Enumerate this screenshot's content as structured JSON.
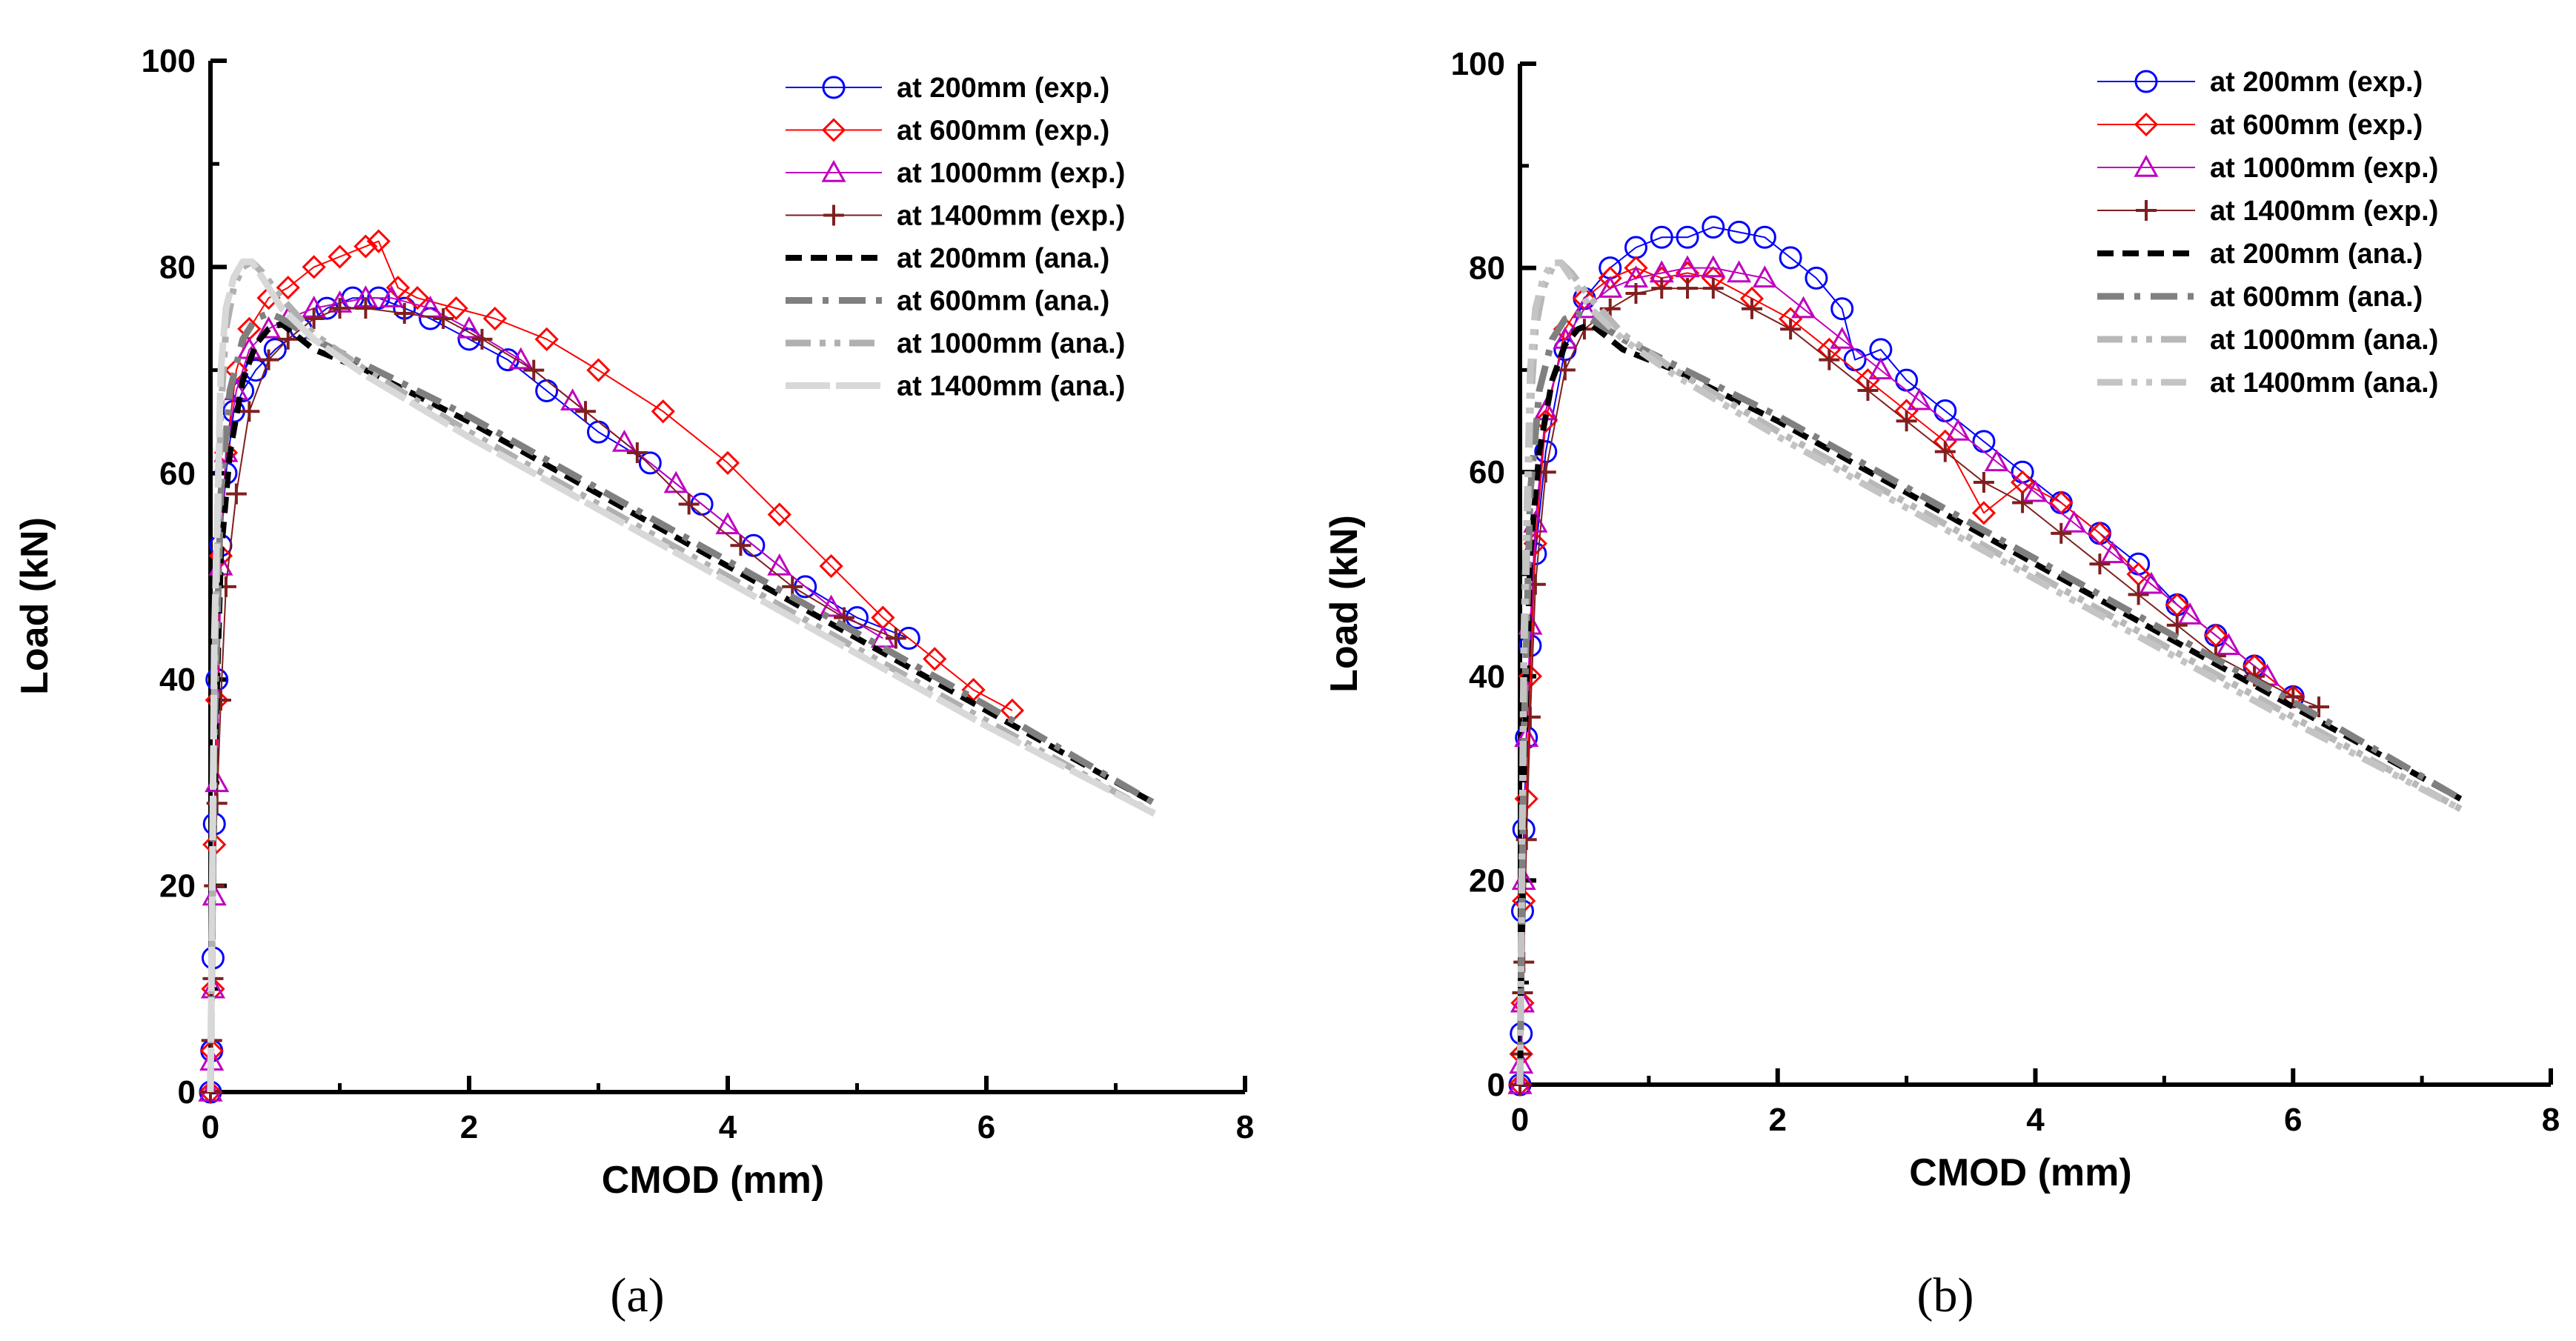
{
  "chart_data": [
    {
      "type": "line",
      "panel": "a",
      "caption": "(a)",
      "title": "",
      "xlabel": "CMOD (mm)",
      "ylabel": "Load (kN)",
      "xlim": [
        0,
        8
      ],
      "ylim": [
        0,
        100
      ],
      "xticks": [
        "0",
        "2",
        "4",
        "6",
        "8"
      ],
      "yticks": [
        "0",
        "20",
        "40",
        "60",
        "80",
        "100"
      ],
      "grid": false,
      "legend_position": "top-right",
      "series": [
        {
          "name": "at 200mm (exp.)",
          "color": "#0000ff",
          "marker": "circle",
          "dash": "solid",
          "x": [
            0,
            0.01,
            0.02,
            0.03,
            0.05,
            0.08,
            0.12,
            0.18,
            0.25,
            0.35,
            0.5,
            0.7,
            0.9,
            1.1,
            1.3,
            1.5,
            1.7,
            2.0,
            2.3,
            2.6,
            3.0,
            3.4,
            3.8,
            4.2,
            4.6,
            5.0,
            5.4
          ],
          "y": [
            0,
            4,
            13,
            26,
            40,
            53,
            60,
            66,
            68,
            70,
            72,
            74,
            76,
            77,
            77,
            76,
            75,
            73,
            71,
            68,
            64,
            61,
            57,
            53,
            49,
            46,
            44
          ]
        },
        {
          "name": "at 600mm (exp.)",
          "color": "#ff0000",
          "marker": "diamond",
          "dash": "solid",
          "x": [
            0,
            0.01,
            0.02,
            0.03,
            0.05,
            0.08,
            0.12,
            0.2,
            0.3,
            0.45,
            0.6,
            0.8,
            1.0,
            1.2,
            1.3,
            1.45,
            1.6,
            1.9,
            2.2,
            2.6,
            3.0,
            3.5,
            4.0,
            4.4,
            4.8,
            5.2,
            5.6,
            5.9,
            6.2
          ],
          "y": [
            0,
            4,
            10,
            24,
            38,
            52,
            62,
            70,
            74,
            77,
            78,
            80,
            81,
            82,
            82.5,
            78,
            77,
            76,
            75,
            73,
            70,
            66,
            61,
            56,
            51,
            46,
            42,
            39,
            37
          ]
        },
        {
          "name": "at 1000mm (exp.)",
          "color": "#bf00bf",
          "marker": "triangle",
          "dash": "solid",
          "x": [
            0,
            0.01,
            0.02,
            0.03,
            0.05,
            0.08,
            0.12,
            0.2,
            0.3,
            0.45,
            0.6,
            0.8,
            1.0,
            1.2,
            1.4,
            1.7,
            2.0,
            2.4,
            2.8,
            3.2,
            3.6,
            4.0,
            4.4,
            4.8,
            5.2
          ],
          "y": [
            0,
            3,
            10,
            19,
            30,
            51,
            62,
            68,
            72,
            74,
            75,
            76,
            76.5,
            77,
            77,
            76,
            74,
            71,
            67,
            63,
            59,
            55,
            51,
            47,
            44
          ]
        },
        {
          "name": "at 1400mm (exp.)",
          "color": "#7f1f1f",
          "marker": "plus",
          "dash": "solid",
          "x": [
            0,
            0.01,
            0.02,
            0.03,
            0.05,
            0.08,
            0.12,
            0.2,
            0.3,
            0.45,
            0.6,
            0.8,
            1.0,
            1.2,
            1.5,
            1.8,
            2.1,
            2.5,
            2.9,
            3.3,
            3.7,
            4.1,
            4.5,
            4.9,
            5.3
          ],
          "y": [
            0,
            5,
            11,
            20,
            28,
            38,
            49,
            58,
            66,
            71,
            73,
            75,
            76,
            76,
            75.5,
            75,
            73,
            70,
            66,
            62,
            57,
            53,
            49,
            46,
            44
          ]
        },
        {
          "name": "at 200mm (ana.)",
          "color": "#000000",
          "marker": "none",
          "dash": "dashed",
          "x": [
            0,
            0.03,
            0.08,
            0.15,
            0.25,
            0.35,
            0.45,
            0.55,
            0.8,
            1.2,
            2.0,
            3.0,
            4.0,
            5.0,
            6.0,
            7.3
          ],
          "y": [
            0,
            30,
            52,
            62,
            69,
            72.5,
            74,
            74.5,
            72,
            70,
            65,
            58,
            51,
            44,
            37,
            28
          ]
        },
        {
          "name": "at 600mm (ana.)",
          "color": "#808080",
          "marker": "none",
          "dash": "dashdot",
          "x": [
            0,
            0.03,
            0.08,
            0.15,
            0.25,
            0.35,
            0.45,
            0.55,
            0.8,
            1.2,
            2.0,
            3.0,
            4.0,
            5.0,
            6.0,
            7.3
          ],
          "y": [
            0,
            34,
            58,
            68,
            73,
            75,
            75.5,
            75,
            73,
            70.5,
            65.5,
            58.5,
            51.5,
            44.5,
            37.5,
            28
          ]
        },
        {
          "name": "at 1000mm (ana.)",
          "color": "#b0b0b0",
          "marker": "none",
          "dash": "dashdotdot",
          "x": [
            0,
            0.03,
            0.08,
            0.12,
            0.18,
            0.25,
            0.32,
            0.4,
            0.55,
            0.8,
            1.2,
            2.0,
            3.0,
            4.0,
            5.0,
            6.0,
            7.3
          ],
          "y": [
            0,
            40,
            66,
            74,
            78,
            80,
            80.5,
            79.5,
            77,
            73.5,
            70,
            64,
            57,
            50,
            43,
            36,
            27
          ]
        },
        {
          "name": "at 1400mm (ana.)",
          "color": "#d8d8d8",
          "marker": "none",
          "dash": "longdash",
          "x": [
            0,
            0.03,
            0.08,
            0.12,
            0.18,
            0.25,
            0.32,
            0.4,
            0.55,
            0.8,
            1.2,
            2.0,
            3.0,
            4.0,
            5.0,
            6.0,
            7.3
          ],
          "y": [
            0,
            44,
            70,
            76,
            79,
            80.5,
            80.5,
            79,
            76,
            73,
            69.5,
            63.5,
            56.5,
            49.5,
            42.5,
            35.5,
            27
          ]
        }
      ]
    },
    {
      "type": "line",
      "panel": "b",
      "caption": "(b)",
      "title": "",
      "xlabel": "CMOD (mm)",
      "ylabel": "Load (kN)",
      "xlim": [
        0,
        8
      ],
      "ylim": [
        0,
        100
      ],
      "xticks": [
        "0",
        "2",
        "4",
        "6",
        "8"
      ],
      "yticks": [
        "0",
        "20",
        "40",
        "60",
        "80",
        "100"
      ],
      "grid": false,
      "legend_position": "top-right",
      "series": [
        {
          "name": "at 200mm (exp.)",
          "color": "#0000ff",
          "marker": "circle",
          "dash": "solid",
          "x": [
            0,
            0.01,
            0.02,
            0.03,
            0.05,
            0.08,
            0.12,
            0.2,
            0.35,
            0.5,
            0.7,
            0.9,
            1.1,
            1.3,
            1.5,
            1.7,
            1.9,
            2.1,
            2.3,
            2.5,
            2.6,
            2.8,
            3.0,
            3.3,
            3.6,
            3.9,
            4.2,
            4.5,
            4.8,
            5.1,
            5.4,
            5.7,
            6.0
          ],
          "y": [
            0,
            5,
            17,
            25,
            34,
            43,
            52,
            62,
            72,
            77,
            80,
            82,
            83,
            83,
            84,
            83.5,
            83,
            81,
            79,
            76,
            71,
            72,
            69,
            66,
            63,
            60,
            57,
            54,
            51,
            47,
            44,
            41,
            38
          ]
        },
        {
          "name": "at 600mm (exp.)",
          "color": "#ff0000",
          "marker": "diamond",
          "dash": "solid",
          "x": [
            0,
            0.01,
            0.02,
            0.03,
            0.05,
            0.08,
            0.12,
            0.2,
            0.35,
            0.5,
            0.7,
            0.9,
            1.1,
            1.3,
            1.5,
            1.8,
            2.1,
            2.4,
            2.7,
            3.0,
            3.3,
            3.6,
            3.9,
            4.2,
            4.5,
            4.8,
            5.1,
            5.4,
            5.7,
            6.0
          ],
          "y": [
            0,
            3,
            8,
            18,
            28,
            40,
            53,
            65,
            74,
            77,
            79,
            80,
            79,
            79.5,
            79,
            77,
            75,
            72,
            69,
            66,
            63,
            56,
            59,
            57,
            54,
            50,
            47,
            44,
            41,
            38
          ]
        },
        {
          "name": "at 1000mm (exp.)",
          "color": "#bf00bf",
          "marker": "triangle",
          "dash": "solid",
          "x": [
            0,
            0.01,
            0.02,
            0.03,
            0.05,
            0.08,
            0.12,
            0.2,
            0.35,
            0.5,
            0.7,
            0.9,
            1.1,
            1.3,
            1.5,
            1.7,
            1.9,
            2.2,
            2.5,
            2.8,
            3.1,
            3.4,
            3.7,
            4.0,
            4.3,
            4.6,
            4.9,
            5.2,
            5.5,
            5.8
          ],
          "y": [
            0,
            2,
            8,
            20,
            34,
            45,
            55,
            66,
            73,
            76,
            78,
            79,
            79.5,
            80,
            80,
            79.5,
            79,
            76,
            73,
            70,
            67,
            64,
            61,
            58,
            55,
            52,
            49,
            46,
            43,
            40
          ]
        },
        {
          "name": "at 1400mm (exp.)",
          "color": "#7f1f1f",
          "marker": "plus",
          "dash": "solid",
          "x": [
            0,
            0.01,
            0.02,
            0.03,
            0.05,
            0.08,
            0.12,
            0.2,
            0.35,
            0.5,
            0.7,
            0.9,
            1.1,
            1.3,
            1.5,
            1.8,
            2.1,
            2.4,
            2.7,
            3.0,
            3.3,
            3.6,
            3.9,
            4.2,
            4.5,
            4.8,
            5.1,
            5.4,
            5.7,
            6.0,
            6.2
          ],
          "y": [
            0,
            3,
            9,
            12,
            24,
            36,
            49,
            60,
            70,
            74,
            76,
            77.5,
            78,
            78,
            78,
            76,
            74,
            71,
            68,
            65,
            62,
            59,
            57,
            54,
            51,
            48,
            45,
            42,
            40,
            38,
            37
          ]
        },
        {
          "name": "at 200mm (ana.)",
          "color": "#000000",
          "marker": "none",
          "dash": "dashed",
          "x": [
            0,
            0.03,
            0.08,
            0.15,
            0.25,
            0.35,
            0.45,
            0.55,
            0.8,
            1.2,
            2.0,
            3.0,
            4.0,
            5.0,
            6.0,
            7.3
          ],
          "y": [
            0,
            30,
            52,
            62,
            69,
            72.5,
            74,
            74.5,
            72,
            70,
            65,
            58,
            51,
            44,
            37,
            28
          ]
        },
        {
          "name": "at 600mm (ana.)",
          "color": "#808080",
          "marker": "none",
          "dash": "dashdot",
          "x": [
            0,
            0.03,
            0.08,
            0.15,
            0.25,
            0.35,
            0.45,
            0.55,
            0.8,
            1.2,
            2.0,
            3.0,
            4.0,
            5.0,
            6.0,
            7.3
          ],
          "y": [
            0,
            34,
            58,
            68,
            73,
            75,
            75.5,
            75,
            73,
            70.5,
            65.5,
            58.5,
            51.5,
            44.5,
            37.5,
            28
          ]
        },
        {
          "name": "at 1000mm (ana.)",
          "color": "#b8b8b8",
          "marker": "none",
          "dash": "dashdotdot",
          "x": [
            0,
            0.03,
            0.08,
            0.12,
            0.18,
            0.25,
            0.32,
            0.4,
            0.55,
            0.8,
            1.2,
            2.0,
            3.0,
            4.0,
            5.0,
            6.0,
            7.3
          ],
          "y": [
            0,
            40,
            66,
            74,
            78,
            80,
            80.5,
            79.5,
            77,
            73.5,
            70,
            64,
            57,
            50,
            43,
            36,
            27
          ]
        },
        {
          "name": "at 1400mm (ana.)",
          "color": "#c4c4c4",
          "marker": "none",
          "dash": "dashdotdot",
          "x": [
            0,
            0.03,
            0.08,
            0.12,
            0.18,
            0.25,
            0.32,
            0.4,
            0.55,
            0.8,
            1.2,
            2.0,
            3.0,
            4.0,
            5.0,
            6.0,
            7.3
          ],
          "y": [
            0,
            44,
            70,
            76,
            79,
            80.5,
            80.5,
            79,
            76,
            73,
            69.5,
            63.5,
            56.5,
            49.5,
            42.5,
            35.5,
            27
          ]
        }
      ]
    }
  ]
}
